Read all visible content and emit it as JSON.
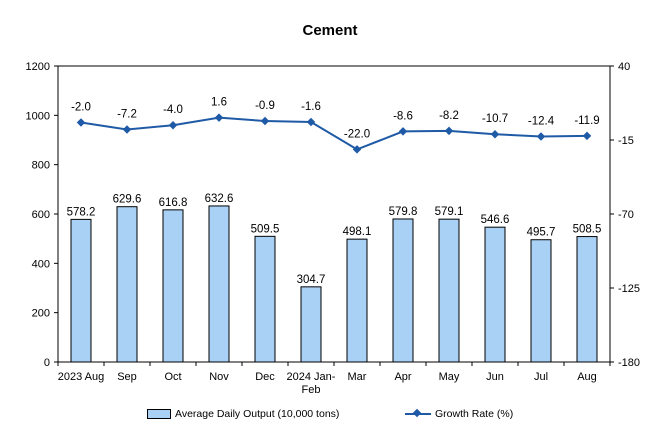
{
  "chart_data": {
    "type": "bar",
    "title": "Cement",
    "categories": [
      "2023 Aug",
      "Sep",
      "Oct",
      "Nov",
      "Dec",
      "2024 Jan-Feb",
      "Mar",
      "Apr",
      "May",
      "Jun",
      "Jul",
      "Aug"
    ],
    "series": [
      {
        "name": "Average Daily Output (10,000 tons)",
        "type": "bar",
        "axis": "left",
        "color": "#a9d1f5",
        "values": [
          578.2,
          629.6,
          616.8,
          632.6,
          509.5,
          304.7,
          498.1,
          579.8,
          579.1,
          546.6,
          495.7,
          508.5
        ],
        "labels": [
          "578.2",
          "629.6",
          "616.8",
          "632.6",
          "509.5",
          "304.7",
          "498.1",
          "579.8",
          "579.1",
          "546.6",
          "495.7",
          "508.5"
        ]
      },
      {
        "name": "Growth Rate (%)",
        "type": "line",
        "axis": "right",
        "color": "#1f5aa6",
        "values": [
          -2.0,
          -7.2,
          -4.0,
          1.6,
          -0.9,
          -1.6,
          -22.0,
          -8.6,
          -8.2,
          -10.7,
          -12.4,
          -11.9
        ],
        "labels": [
          "-2.0",
          "-7.2",
          "-4.0",
          "1.6",
          "-0.9",
          "-1.6",
          "-22.0",
          "-8.6",
          "-8.2",
          "-10.7",
          "-12.4",
          "-11.9"
        ]
      }
    ],
    "y_left": {
      "min": 0,
      "max": 1200,
      "ticks": [
        "0",
        "200",
        "400",
        "600",
        "800",
        "1000",
        "1200"
      ]
    },
    "y_right": {
      "min": -180,
      "max": 40,
      "ticks": [
        "-180",
        "-125",
        "-70",
        "-15",
        "40"
      ]
    },
    "grid": false,
    "legend_position": "bottom"
  }
}
